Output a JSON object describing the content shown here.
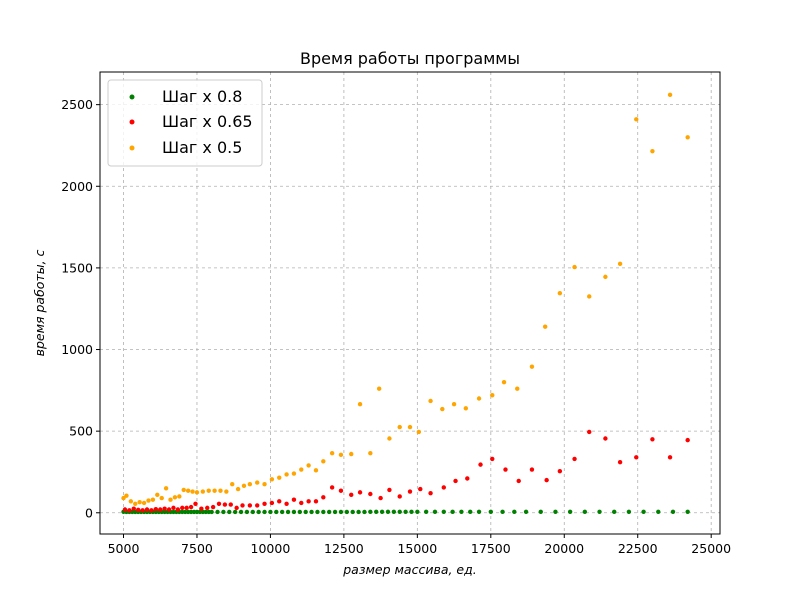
{
  "chart_data": {
    "type": "scatter",
    "title": "Время работы программы",
    "xlabel": "размер массива, ед.",
    "ylabel": "время работы, с",
    "xlim": [
      4200,
      25300
    ],
    "ylim": [
      -130,
      2700
    ],
    "xticks": [
      5000,
      7500,
      10000,
      12500,
      15000,
      17500,
      20000,
      22500,
      25000
    ],
    "yticks": [
      0,
      500,
      1000,
      1500,
      2000,
      2500
    ],
    "grid": true,
    "legend_position": "top-left",
    "series": [
      {
        "name": "Шаг x 0.8",
        "color": "#008000",
        "x": [
          5000,
          5100,
          5200,
          5300,
          5400,
          5500,
          5600,
          5700,
          5800,
          5900,
          6000,
          6100,
          6200,
          6300,
          6400,
          6500,
          6600,
          6700,
          6800,
          6900,
          7000,
          7100,
          7200,
          7300,
          7400,
          7500,
          7600,
          7700,
          7800,
          7900,
          8000,
          8200,
          8400,
          8600,
          8800,
          9000,
          9200,
          9400,
          9600,
          9800,
          10000,
          10200,
          10400,
          10600,
          10800,
          11000,
          11200,
          11400,
          11600,
          11800,
          12000,
          12200,
          12400,
          12600,
          12800,
          13000,
          13200,
          13400,
          13600,
          13800,
          14000,
          14200,
          14400,
          14600,
          14800,
          15000,
          15300,
          15600,
          15900,
          16200,
          16500,
          16800,
          17100,
          17500,
          17900,
          18300,
          18700,
          19200,
          19700,
          20200,
          20700,
          21200,
          21700,
          22200,
          22700,
          23200,
          23700,
          24200
        ],
        "y": [
          6,
          5,
          5,
          5,
          5,
          5,
          5,
          5,
          5,
          5,
          5,
          5,
          5,
          5,
          5,
          5,
          5,
          5,
          5,
          5,
          5,
          5,
          5,
          5,
          5,
          5,
          5,
          5,
          5,
          5,
          5,
          5,
          5,
          5,
          5,
          5,
          5,
          5,
          5,
          5,
          5,
          5,
          5,
          5,
          5,
          5,
          5,
          5,
          5,
          5,
          5,
          5,
          5,
          5,
          5,
          5,
          5,
          6,
          6,
          6,
          6,
          6,
          6,
          6,
          6,
          6,
          6,
          6,
          6,
          6,
          6,
          6,
          6,
          6,
          6,
          6,
          6,
          6,
          6,
          6,
          6,
          6,
          6,
          6,
          6,
          6,
          6,
          6
        ]
      },
      {
        "name": "Шаг x 0.65",
        "color": "#ff0000",
        "x": [
          5050,
          5200,
          5350,
          5500,
          5650,
          5800,
          5950,
          6100,
          6250,
          6400,
          6550,
          6700,
          6850,
          7000,
          7150,
          7300,
          7450,
          7650,
          7850,
          8050,
          8250,
          8450,
          8650,
          8850,
          9050,
          9300,
          9550,
          9800,
          10050,
          10300,
          10550,
          10800,
          11050,
          11300,
          11550,
          11800,
          12100,
          12400,
          12750,
          13050,
          13400,
          13750,
          14050,
          14400,
          14750,
          15100,
          15450,
          15900,
          16300,
          16700,
          17150,
          17550,
          18000,
          18450,
          18900,
          19400,
          19850,
          20350,
          20850,
          21400,
          21900,
          22450,
          23000,
          23600,
          24200
        ],
        "y": [
          20,
          15,
          25,
          18,
          15,
          20,
          15,
          22,
          20,
          25,
          20,
          30,
          20,
          30,
          30,
          35,
          55,
          25,
          30,
          35,
          55,
          50,
          50,
          30,
          45,
          45,
          45,
          55,
          60,
          70,
          55,
          80,
          60,
          70,
          70,
          95,
          155,
          135,
          110,
          125,
          115,
          90,
          140,
          100,
          130,
          145,
          120,
          155,
          195,
          210,
          295,
          330,
          265,
          195,
          265,
          200,
          255,
          330,
          495,
          455,
          310,
          340,
          450,
          340,
          445
        ]
      },
      {
        "name": "Шаг x 0.5",
        "color": "#ffa500",
        "x": [
          5000,
          5100,
          5250,
          5400,
          5550,
          5700,
          5850,
          6000,
          6150,
          6300,
          6450,
          6600,
          6750,
          6900,
          7050,
          7200,
          7350,
          7500,
          7700,
          7900,
          8100,
          8300,
          8500,
          8700,
          8900,
          9100,
          9300,
          9550,
          9800,
          10050,
          10300,
          10550,
          10800,
          11050,
          11300,
          11550,
          11800,
          12100,
          12400,
          12750,
          13050,
          13400,
          13700,
          14050,
          14400,
          14750,
          15050,
          15450,
          15850,
          16250,
          16650,
          17100,
          17550,
          17950,
          18400,
          18900,
          19350,
          19850,
          20350,
          20850,
          21400,
          21900,
          22450,
          23000,
          23600,
          24200
        ],
        "y": [
          90,
          105,
          70,
          55,
          65,
          60,
          75,
          80,
          110,
          90,
          150,
          80,
          95,
          100,
          140,
          135,
          130,
          125,
          130,
          135,
          135,
          135,
          130,
          175,
          145,
          165,
          175,
          185,
          175,
          205,
          215,
          235,
          240,
          265,
          290,
          260,
          315,
          365,
          355,
          360,
          665,
          365,
          760,
          455,
          525,
          525,
          495,
          685,
          635,
          665,
          640,
          700,
          720,
          800,
          760,
          895,
          1140,
          1345,
          1505,
          1325,
          1445,
          1525,
          2410,
          2215,
          2560,
          2300
        ]
      }
    ]
  }
}
